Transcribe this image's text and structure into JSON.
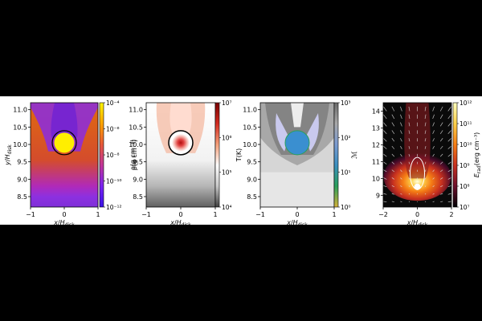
{
  "chart_data": [
    {
      "type": "heatmap",
      "quantity": "rho",
      "xlabel": "x/H_disk",
      "ylabel": "y/H_disk",
      "xlim": [
        -1,
        1
      ],
      "ylim": [
        8.2,
        11.2
      ],
      "xticks": [
        "−1",
        "0",
        "1"
      ],
      "yticks": [
        "8.5",
        "9.0",
        "9.5",
        "10.0",
        "10.5",
        "11.0"
      ],
      "colorbar": {
        "label": "ρ(g cm⁻³)",
        "scale": "log",
        "ticks": [
          "10⁻⁴",
          "10⁻⁶",
          "10⁻⁸",
          "10⁻¹⁰",
          "10⁻¹²"
        ],
        "colors": [
          "#fff700",
          "#ffa400",
          "#e8593a",
          "#c2369a",
          "#7a23f3",
          "#3a12e8"
        ]
      },
      "colors": {
        "body": "#ffee00",
        "background": "#d95b16",
        "lobe": "#8a2be2",
        "band": "#b02ab8"
      }
    },
    {
      "type": "heatmap",
      "quantity": "T",
      "xlabel": "x/H_disk",
      "ylabel": "",
      "xlim": [
        -1,
        1
      ],
      "ylim": [
        8.2,
        11.2
      ],
      "xticks": [
        "−1",
        "0",
        "1"
      ],
      "yticks": [
        "8.5",
        "9.0",
        "9.5",
        "10.0",
        "10.5",
        "11.0"
      ],
      "colorbar": {
        "label": "T(K)",
        "scale": "log",
        "ticks": [
          "10⁷",
          "10⁶",
          "10⁵",
          "10⁴"
        ],
        "colors": [
          "#7a0000",
          "#d42a20",
          "#f6a07a",
          "#ffffff",
          "#c8c8c8",
          "#404040"
        ]
      },
      "colors": {
        "body": "#c01a1a",
        "background": "#ffffff",
        "lobe": "#f4b9a2"
      }
    },
    {
      "type": "heatmap",
      "quantity": "Mach",
      "xlabel": "x/H_disk",
      "ylabel": "",
      "xlim": [
        -1,
        1
      ],
      "ylim": [
        8.2,
        11.2
      ],
      "xticks": [
        "−1",
        "0",
        "1"
      ],
      "yticks": [
        "8.5",
        "9.0",
        "9.5",
        "10.0",
        "10.5",
        "11.0"
      ],
      "colorbar": {
        "label": "ℳ",
        "scale": "log",
        "ticks": [
          "10³",
          "10²",
          "10¹",
          "10⁰"
        ],
        "colors": [
          "#6a6a6a",
          "#a8a8a8",
          "#7b9bd1",
          "#3a8fc0",
          "#2aa05a",
          "#d4b13a"
        ]
      },
      "colors": {
        "body": "#3a8fd0",
        "background": "#d4d4d4",
        "lobe": "#9e9e9e"
      }
    },
    {
      "type": "heatmap",
      "quantity": "E_rad",
      "xlabel": "x/H_disk",
      "ylabel": "",
      "xlim": [
        -2,
        2
      ],
      "ylim": [
        8.3,
        14.5
      ],
      "xticks": [
        "−2",
        "0",
        "2"
      ],
      "yticks": [
        "9",
        "10",
        "11",
        "12",
        "13",
        "14"
      ],
      "colorbar": {
        "label": "E_rad(erg cm⁻³)",
        "scale": "log",
        "ticks": [
          "10¹²",
          "10¹¹",
          "10¹⁰",
          "10⁹",
          "10⁸",
          "10⁷"
        ],
        "colors": [
          "#ffffbf",
          "#fdd049",
          "#f57d15",
          "#c7301f",
          "#6d0f2a",
          "#000004"
        ]
      },
      "colors": {
        "body": "#ffffff",
        "background": "#0a0a0a",
        "arrow": "#dddddd"
      }
    }
  ]
}
